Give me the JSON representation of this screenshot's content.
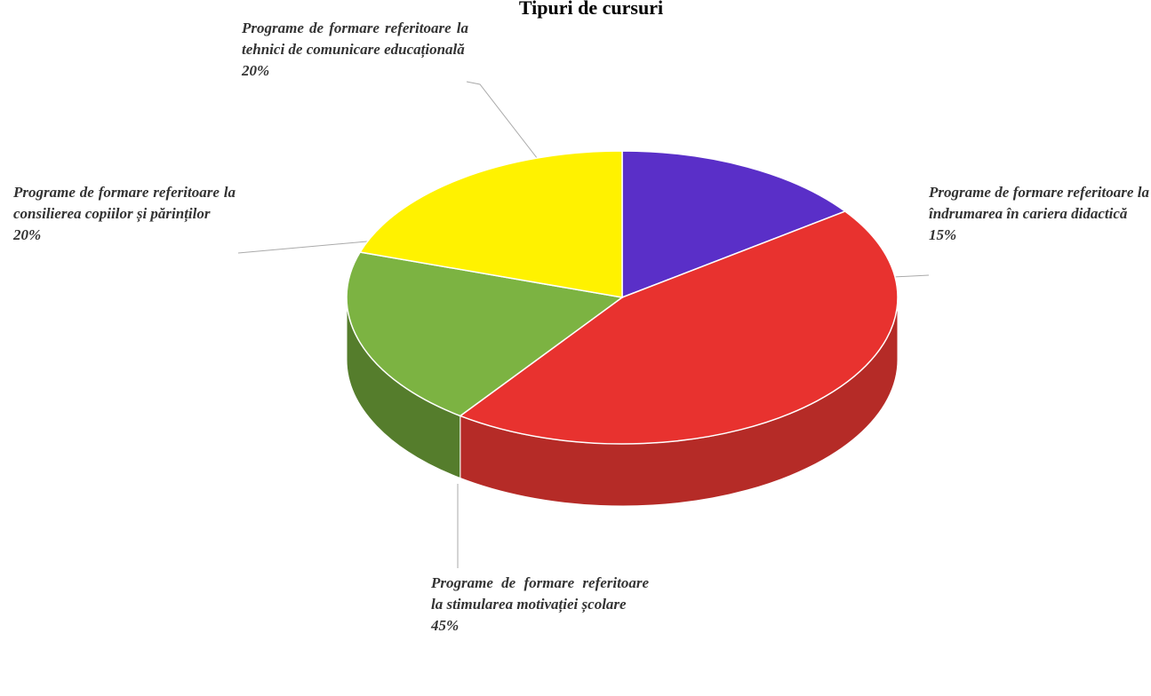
{
  "chart_data": {
    "type": "pie",
    "title": "Tipuri de cursuri",
    "categories": [
      "Programe de formare referitoare la îndrumarea în cariera didactică",
      "Programe de formare referitoare la stimularea motivației școlare",
      "Programe de formare referitoare la consilierea copiilor și părinților",
      "Programe de formare referitoare la tehnici de comunicare educațională"
    ],
    "values": [
      15,
      45,
      20,
      20
    ],
    "value_labels": [
      "15%",
      "45%",
      "20%",
      "20%"
    ],
    "colors": [
      "#5a2fc8",
      "#e8322f",
      "#7cb342",
      "#fff200"
    ],
    "side_colors": [
      "#2b2775",
      "#b52b27",
      "#557d2c",
      "#b8ad00"
    ]
  }
}
